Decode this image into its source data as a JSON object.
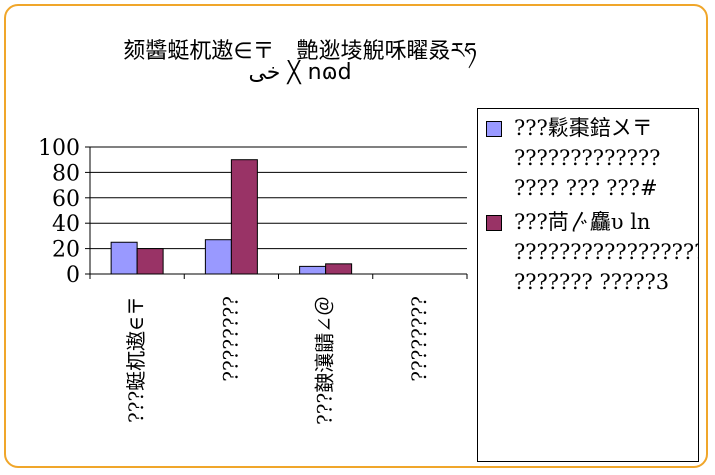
{
  "title": {
    "line1": "颏醬蜓杌遨∈〒　艶逖堎觬咊矅叒ཪཧ",
    "line2": "خى ╳ nɷd"
  },
  "chart_data": {
    "type": "bar",
    "categories": [
      "???蜓杌遨∈〒",
      "????????",
      "???螤瀼鼱∠＠",
      "????????"
    ],
    "series": [
      {
        "name": "???鬏棗錇〤〒 ????????????? ???? ??? ???#",
        "values": [
          25,
          27,
          6,
          0
        ],
        "color": "#9999ff"
      },
      {
        "name": "???苘〴麤υ ln ????????????????? ??????? ?????3",
        "values": [
          20,
          90,
          8,
          0
        ],
        "color": "#993366"
      }
    ],
    "ylim": [
      0,
      100
    ],
    "yticks": [
      0,
      20,
      40,
      60,
      80,
      100
    ],
    "grid": true,
    "legend_position": "right"
  }
}
